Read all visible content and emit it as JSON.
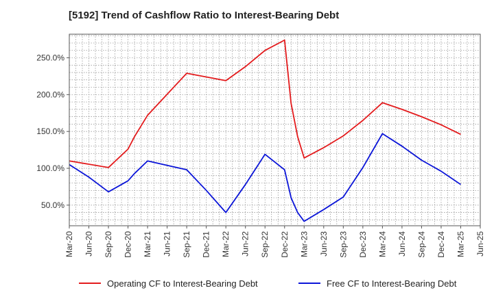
{
  "chart_data": {
    "type": "line",
    "title": "[5192]  Trend of Cashflow Ratio to Interest-Bearing Debt",
    "xlabel": "",
    "ylabel": "",
    "x_ticks": [
      "Mar-20",
      "Jun-20",
      "Sep-20",
      "Dec-20",
      "Mar-21",
      "Jun-21",
      "Sep-21",
      "Dec-21",
      "Mar-22",
      "Jun-22",
      "Sep-22",
      "Dec-22",
      "Mar-23",
      "Jun-23",
      "Sep-23",
      "Dec-23",
      "Mar-24",
      "Jun-24",
      "Sep-24",
      "Dec-24",
      "Mar-25",
      "Jun-25"
    ],
    "y_ticks": [
      {
        "value": 50,
        "label": "50.0%"
      },
      {
        "value": 100,
        "label": "100.0%"
      },
      {
        "value": 150,
        "label": "150.0%"
      },
      {
        "value": 200,
        "label": "200.0%"
      },
      {
        "value": 250,
        "label": "250.0%"
      }
    ],
    "ylim": [
      22,
      282
    ],
    "grid": true,
    "legend_position": "bottom",
    "series": [
      {
        "name": "Operating CF to Interest-Bearing Debt",
        "color": "#e31a1c",
        "points": [
          [
            "Mar-20",
            110
          ],
          [
            "Sep-20",
            101
          ],
          [
            "Dec-20",
            126
          ],
          [
            "Jan-21",
            143
          ],
          [
            "Mar-21",
            172
          ],
          [
            "Sep-21",
            229
          ],
          [
            "Mar-22",
            219
          ],
          [
            "Jun-22",
            238
          ],
          [
            "Sep-22",
            260
          ],
          [
            "Dec-22",
            274
          ],
          [
            "Jan-23",
            188
          ],
          [
            "Feb-23",
            143
          ],
          [
            "Mar-23",
            114
          ],
          [
            "Jun-23",
            128
          ],
          [
            "Sep-23",
            144
          ],
          [
            "Dec-23",
            165
          ],
          [
            "Mar-24",
            189
          ],
          [
            "Jun-24",
            180
          ],
          [
            "Sep-24",
            170
          ],
          [
            "Dec-24",
            159
          ],
          [
            "Mar-25",
            146
          ]
        ]
      },
      {
        "name": "Free CF to Interest-Bearing Debt",
        "color": "#0a14d8",
        "points": [
          [
            "Mar-20",
            105
          ],
          [
            "Jun-20",
            88
          ],
          [
            "Sep-20",
            68
          ],
          [
            "Dec-20",
            83
          ],
          [
            "Jan-21",
            93
          ],
          [
            "Mar-21",
            110
          ],
          [
            "Sep-21",
            98
          ],
          [
            "Dec-21",
            70
          ],
          [
            "Mar-22",
            40
          ],
          [
            "Jun-22",
            78
          ],
          [
            "Sep-22",
            119
          ],
          [
            "Dec-22",
            98
          ],
          [
            "Jan-23",
            60
          ],
          [
            "Feb-23",
            40
          ],
          [
            "Mar-23",
            28
          ],
          [
            "Jun-23",
            44
          ],
          [
            "Sep-23",
            61
          ],
          [
            "Dec-23",
            101
          ],
          [
            "Mar-24",
            147
          ],
          [
            "Jun-24",
            130
          ],
          [
            "Sep-24",
            111
          ],
          [
            "Dec-24",
            96
          ],
          [
            "Mar-25",
            78
          ]
        ]
      }
    ]
  }
}
